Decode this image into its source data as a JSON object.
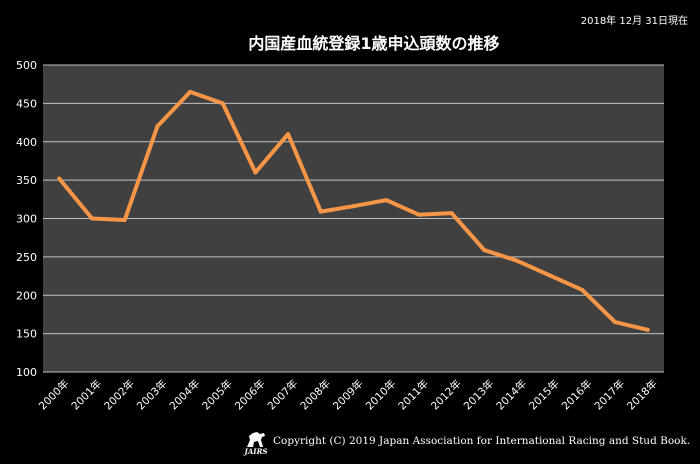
{
  "date_note": "2018年 12月 31日現在",
  "footer": {
    "logo_text": "JAIRS",
    "copyright": "Copyright (C) 2019 Japan Association for International Racing and Stud Book."
  },
  "colors": {
    "background": "#000000",
    "plot_area": "#404040",
    "grid": "#bfbfbf",
    "line": "#f79646",
    "text": "#ffffff"
  },
  "chart_data": {
    "type": "line",
    "title": "内国産血統登録1歳申込頭数の推移",
    "xlabel": "",
    "ylabel": "",
    "categories": [
      "2000年",
      "2001年",
      "2002年",
      "2003年",
      "2004年",
      "2005年",
      "2006年",
      "2007年",
      "2008年",
      "2009年",
      "2010年",
      "2011年",
      "2012年",
      "2013年",
      "2014年",
      "2015年",
      "2016年",
      "2017年",
      "2018年"
    ],
    "series": [
      {
        "values": [
          352,
          300,
          298,
          420,
          465,
          450,
          360,
          410,
          309,
          316,
          324,
          305,
          307,
          259,
          245,
          226,
          207,
          165,
          155
        ]
      }
    ],
    "ylim": [
      100,
      500
    ],
    "yticks": [
      100,
      150,
      200,
      250,
      300,
      350,
      400,
      450,
      500
    ],
    "grid": true,
    "legend": "none"
  }
}
